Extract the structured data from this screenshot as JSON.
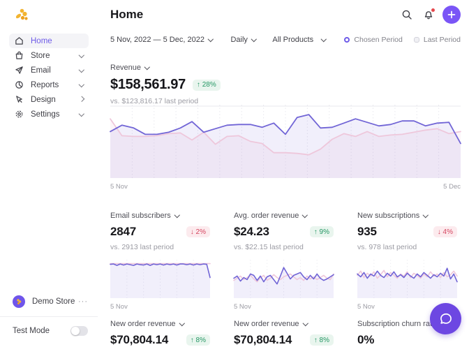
{
  "header": {
    "title": "Home"
  },
  "sidebar": {
    "items": [
      {
        "label": "Home",
        "active": true
      },
      {
        "label": "Store"
      },
      {
        "label": "Email"
      },
      {
        "label": "Reports"
      },
      {
        "label": "Design"
      },
      {
        "label": "Settings"
      }
    ],
    "store_name": "Demo Store",
    "test_mode_label": "Test Mode",
    "test_mode_on": false
  },
  "filters": {
    "date_range": "5 Nov, 2022 — 5 Dec, 2022",
    "granularity": "Daily",
    "product": "All Products"
  },
  "legend": {
    "chosen": "Chosen Period",
    "last": "Last Period"
  },
  "revenue": {
    "label": "Revenue",
    "value": "$158,561.97",
    "change": "↑ 28%",
    "trend": "up",
    "vs": "vs. $123,816.17 last period",
    "axis_start": "5 Nov",
    "axis_end": "5 Dec"
  },
  "metrics": [
    {
      "label": "Email subscribers",
      "value": "2847",
      "change": "↓ 2%",
      "trend": "down",
      "vs": "vs. 2913 last period",
      "axis": "5 Nov"
    },
    {
      "label": "Avg. order revenue",
      "value": "$24.23",
      "change": "↑ 9%",
      "trend": "up",
      "vs": "vs. $22.15 last period",
      "axis": "5 Nov"
    },
    {
      "label": "New subscriptions",
      "value": "935",
      "change": "↓ 4%",
      "trend": "down",
      "vs": "vs. 978 last period",
      "axis": "5 Nov"
    }
  ],
  "bottom_metrics": [
    {
      "label": "New order revenue",
      "value": "$70,804.14",
      "change": "↑ 8%",
      "trend": "up"
    },
    {
      "label": "New order revenue",
      "value": "$70,804.14",
      "change": "↑ 8%",
      "trend": "up"
    },
    {
      "label": "Subscription churn rate",
      "value": "0%"
    }
  ],
  "colors": {
    "accent_purple": "#7a55f6",
    "chat_purple": "#6d47e2",
    "chosen_line": "#7165d6",
    "last_line": "#eec7db",
    "badge_green": "#259764",
    "badge_red": "#d5455f",
    "notification_dot": "#e5484d",
    "logo_yellow": "#f2b431"
  },
  "chart_data": [
    {
      "id": "revenue",
      "type": "line",
      "title": "Revenue — 5 Nov, 2022 to 5 Dec, 2022 (daily)",
      "x_range": [
        "5 Nov",
        "5 Dec"
      ],
      "units": "relative height 0-100 (y-axis unlabeled in UI)",
      "gridlines": 15,
      "grid_color": "#e8e8ee",
      "top_rule": true,
      "line_width": 1.8,
      "legend_position": "top-right of filter bar",
      "series": [
        {
          "name": "Last Period",
          "color": "#eec7db",
          "fill": "rgba(238,199,219,0.18)",
          "values": [
            81,
            57,
            56,
            56,
            57,
            60,
            61,
            51,
            62,
            45,
            56,
            57,
            49,
            46,
            33,
            33,
            32,
            30,
            38,
            52,
            60,
            56,
            63,
            56,
            58,
            59,
            62,
            65,
            67,
            60,
            63
          ]
        },
        {
          "name": "Chosen Period",
          "color": "#7165d6",
          "fill": "rgba(113,101,214,0.10)",
          "values": [
            63,
            72,
            68,
            59,
            59,
            62,
            68,
            77,
            62,
            67,
            72,
            73,
            73,
            69,
            75,
            59,
            83,
            87,
            68,
            69,
            75,
            81,
            76,
            71,
            73,
            78,
            78,
            71,
            75,
            76,
            46
          ]
        }
      ]
    },
    {
      "id": "email_subscribers",
      "type": "line",
      "title": "Email subscribers (daily)",
      "x_range": [
        "5 Nov",
        "5 Dec"
      ],
      "units": "relative height 0-100 (y-axis unlabeled in UI)",
      "gridlines": 5,
      "grid_color": "#ededf2",
      "line_width": 1.6,
      "series": [
        {
          "name": "Last Period",
          "color": "#eec7db",
          "values": [
            91,
            91,
            91,
            91,
            91,
            91,
            91,
            91,
            91,
            91,
            91,
            91,
            91,
            91,
            91,
            91,
            91,
            91,
            91,
            91,
            91,
            91,
            91,
            91,
            91,
            91,
            91,
            91,
            91,
            91,
            91
          ]
        },
        {
          "name": "Chosen Period",
          "color": "#7165d6",
          "fill": "rgba(113,101,214,0.10)",
          "values": [
            89,
            90,
            86,
            90,
            87,
            90,
            88,
            86,
            90,
            88,
            87,
            90,
            86,
            90,
            88,
            90,
            87,
            90,
            88,
            90,
            87,
            90,
            90,
            88,
            90,
            87,
            90,
            88,
            90,
            89,
            52
          ]
        }
      ]
    },
    {
      "id": "avg_order_revenue",
      "type": "line",
      "title": "Avg. order revenue (daily)",
      "x_range": [
        "5 Nov",
        "5 Dec"
      ],
      "units": "relative height 0-100 (y-axis unlabeled in UI)",
      "gridlines": 5,
      "grid_color": "#ededf2",
      "line_width": 1.6,
      "series": [
        {
          "name": "Last Period",
          "color": "#eec7db",
          "values": [
            44,
            50,
            56,
            46,
            52,
            58,
            48,
            40,
            52,
            58,
            44,
            50,
            60,
            52,
            46,
            54,
            58,
            62,
            54,
            46,
            52,
            44,
            56,
            48,
            54,
            46,
            52,
            58,
            50,
            46,
            62
          ]
        },
        {
          "name": "Chosen Period",
          "color": "#7165d6",
          "fill": "rgba(113,101,214,0.10)",
          "values": [
            50,
            56,
            42,
            52,
            46,
            62,
            58,
            44,
            56,
            40,
            54,
            58,
            46,
            34,
            56,
            80,
            64,
            48,
            58,
            62,
            66,
            54,
            46,
            58,
            48,
            62,
            50,
            44,
            48,
            54,
            60
          ]
        }
      ]
    },
    {
      "id": "new_subscriptions",
      "type": "line",
      "title": "New subscriptions (daily)",
      "x_range": [
        "5 Nov",
        "5 Dec"
      ],
      "units": "relative height 0-100 (y-axis unlabeled in UI)",
      "gridlines": 5,
      "grid_color": "#ededf2",
      "line_width": 1.6,
      "series": [
        {
          "name": "Last Period",
          "color": "#eec7db",
          "values": [
            58,
            70,
            52,
            64,
            56,
            68,
            50,
            60,
            72,
            54,
            66,
            58,
            50,
            62,
            56,
            68,
            52,
            64,
            58,
            50,
            62,
            54,
            68,
            56,
            62,
            52,
            66,
            54,
            60,
            70,
            56
          ]
        },
        {
          "name": "Chosen Period",
          "color": "#7165d6",
          "fill": "rgba(113,101,214,0.10)",
          "values": [
            62,
            54,
            66,
            50,
            62,
            56,
            70,
            58,
            52,
            64,
            56,
            68,
            54,
            60,
            52,
            64,
            56,
            50,
            62,
            54,
            66,
            58,
            50,
            60,
            54,
            64,
            56,
            78,
            48,
            62,
            40
          ]
        }
      ]
    }
  ]
}
